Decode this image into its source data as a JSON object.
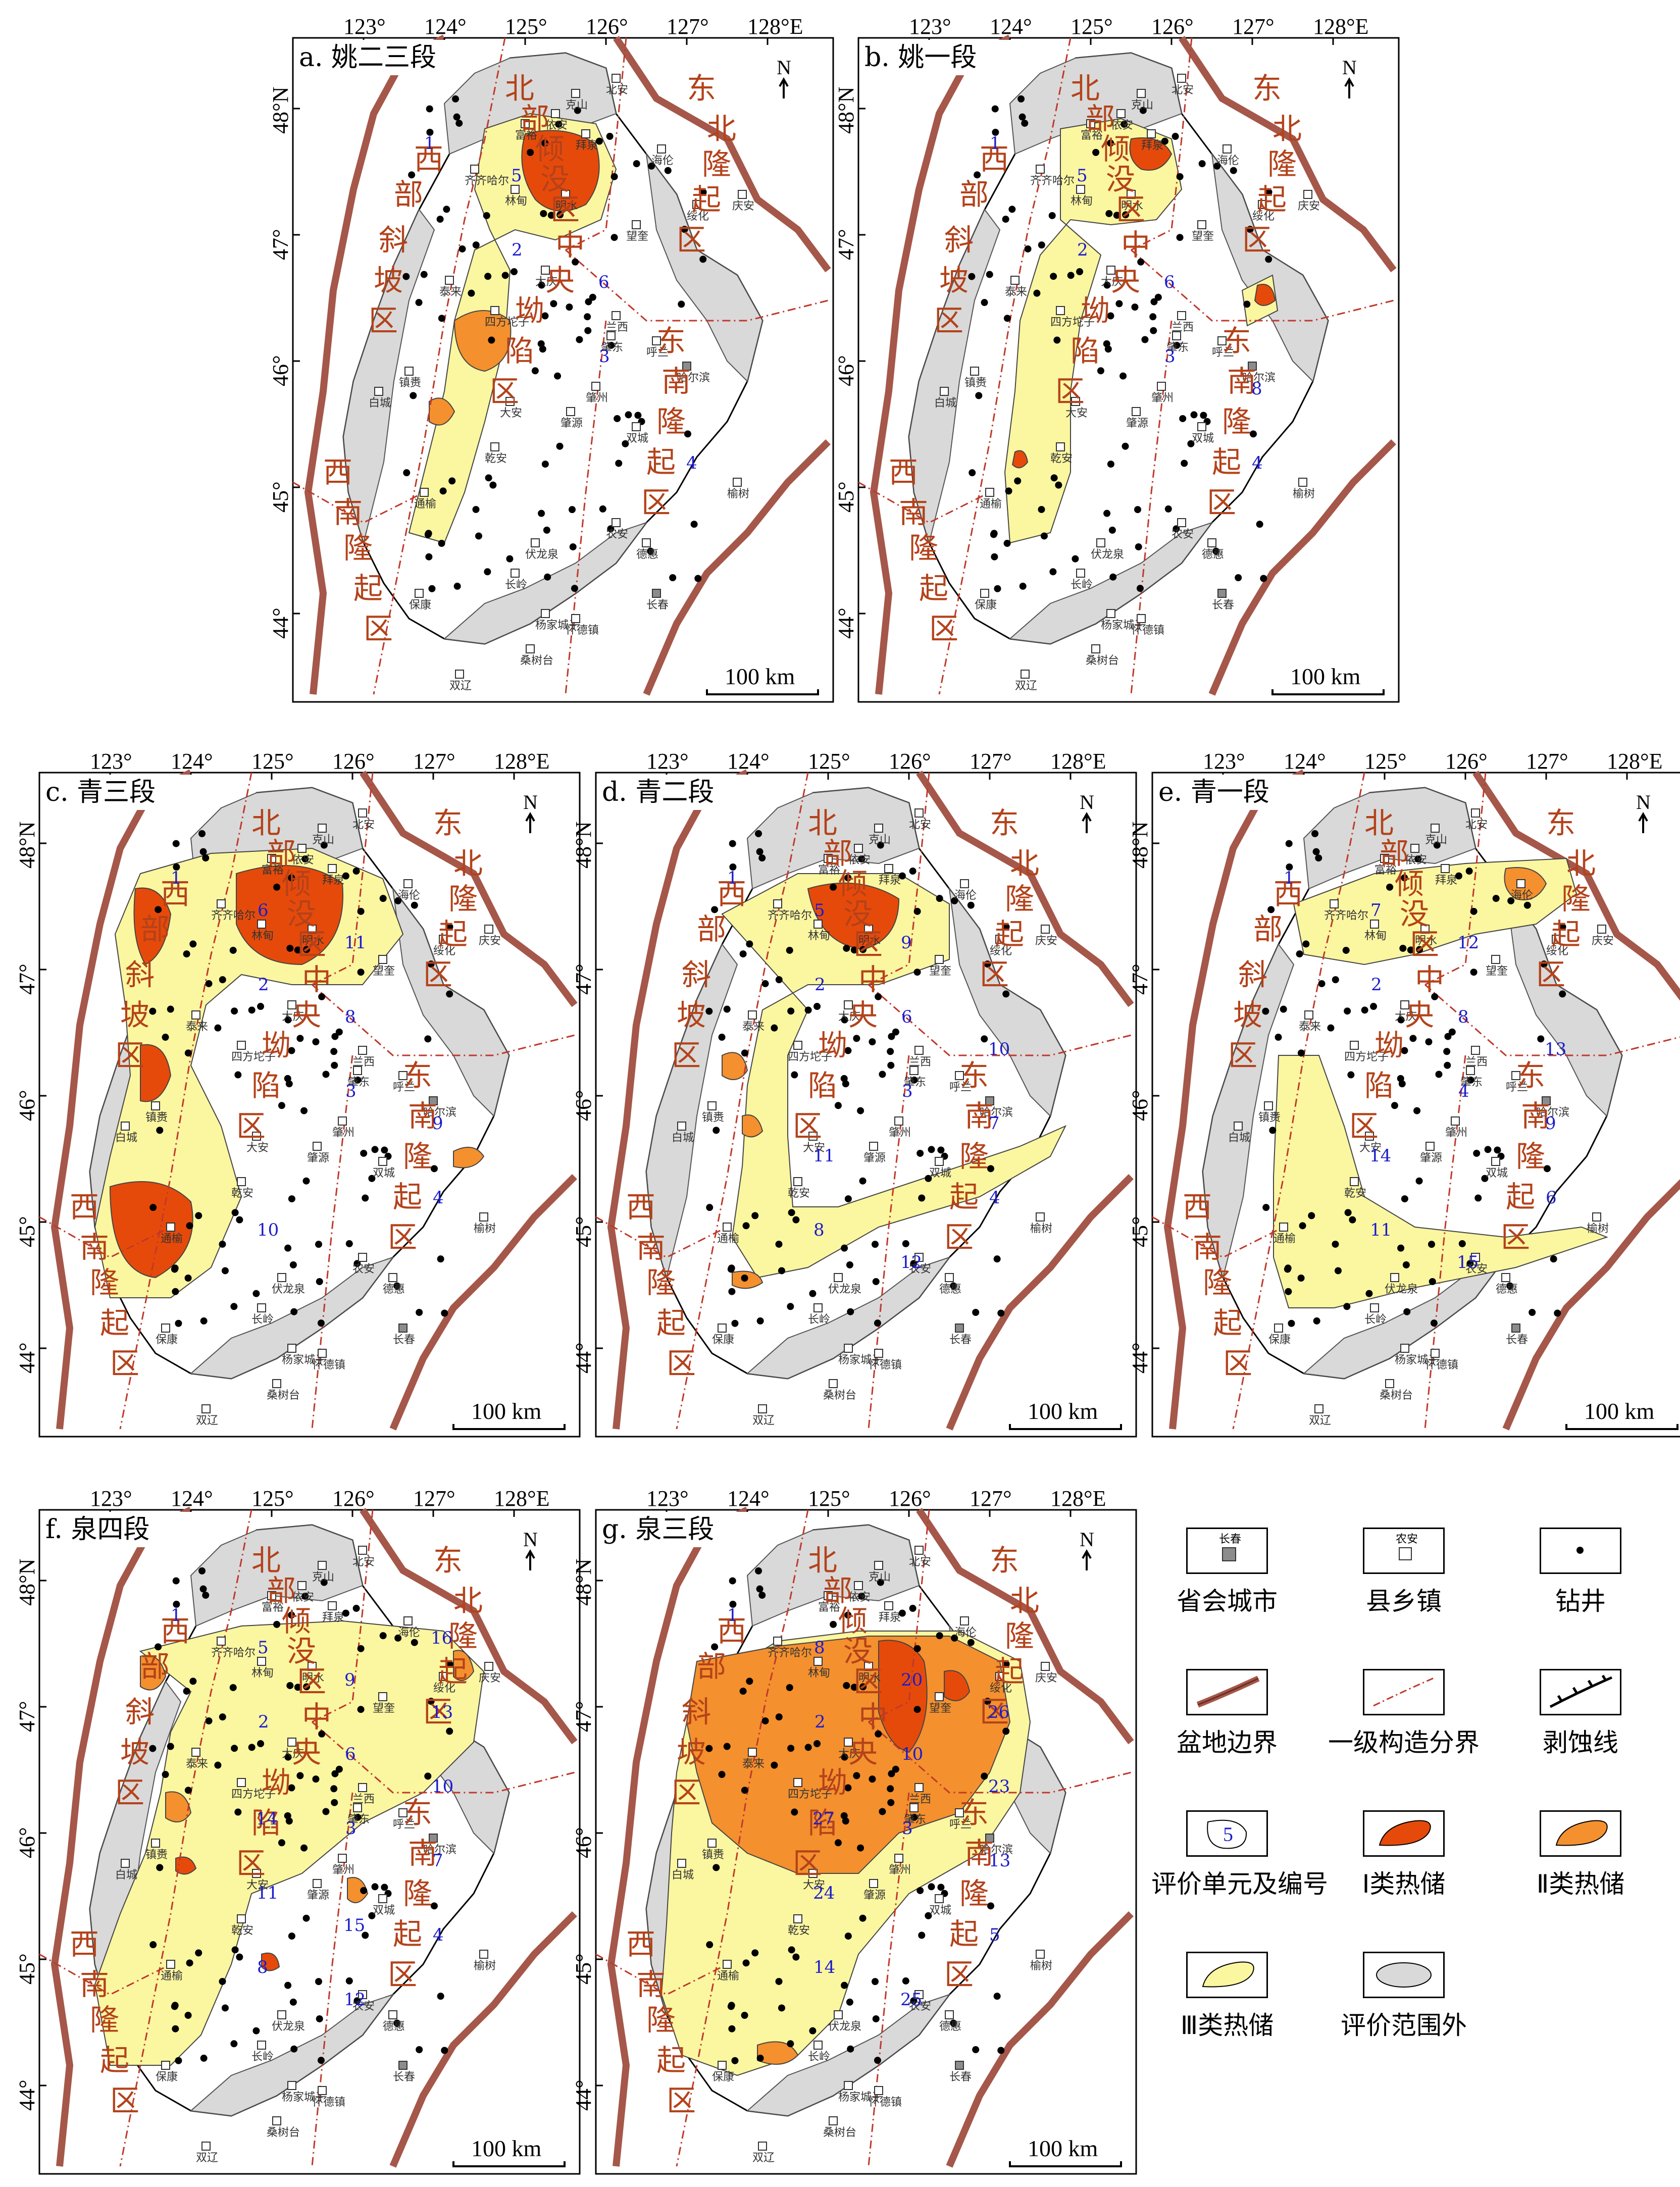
{
  "lon_labels": [
    "123°",
    "124°",
    "125°",
    "126°",
    "127°",
    "128°E"
  ],
  "lat_labels": [
    "48°N",
    "47°",
    "46°",
    "45°",
    "44°"
  ],
  "scale_label": "100 km",
  "north_label": "N",
  "panels": [
    {
      "id": "a",
      "title": "a. 姚二三段",
      "units": [
        "1",
        "2",
        "3",
        "4",
        "5",
        "6"
      ]
    },
    {
      "id": "b",
      "title": "b. 姚一段",
      "units": [
        "1",
        "2",
        "3",
        "4",
        "5",
        "6",
        "8"
      ]
    },
    {
      "id": "c",
      "title": "c. 青三段",
      "units": [
        "1",
        "2",
        "3",
        "4",
        "6",
        "8",
        "9",
        "10",
        "11"
      ]
    },
    {
      "id": "d",
      "title": "d. 青二段",
      "units": [
        "1",
        "2",
        "3",
        "4",
        "5",
        "6",
        "7",
        "8",
        "9",
        "10",
        "11",
        "12"
      ]
    },
    {
      "id": "e",
      "title": "e. 青一段",
      "units": [
        "1",
        "2",
        "4",
        "6",
        "7",
        "8",
        "9",
        "11",
        "12",
        "13",
        "14",
        "15"
      ]
    },
    {
      "id": "f",
      "title": "f. 泉四段",
      "units": [
        "1",
        "2",
        "3",
        "4",
        "5",
        "6",
        "7",
        "8",
        "9",
        "10",
        "11",
        "12",
        "13",
        "14",
        "15",
        "16"
      ]
    },
    {
      "id": "g",
      "title": "g. 泉三段",
      "units": [
        "1",
        "2",
        "3",
        "5",
        "8",
        "10",
        "13",
        "14",
        "20",
        "23",
        "24",
        "25",
        "26",
        "27"
      ]
    }
  ],
  "regions": [
    "北部倾没区",
    "东北隆起区",
    "西部斜坡区",
    "中央坳陷区",
    "东南隆起区",
    "西南隆起区"
  ],
  "region_chars": {
    "north": [
      "北",
      "部",
      "倾",
      "没",
      "区"
    ],
    "northeast": [
      "东",
      "北",
      "隆",
      "起",
      "区"
    ],
    "west": [
      "西",
      "部",
      "斜",
      "坡",
      "区"
    ],
    "central": [
      "中",
      "央",
      "坳",
      "陷",
      "区"
    ],
    "southeast": [
      "东",
      "南",
      "隆",
      "起",
      "区"
    ],
    "southwest": [
      "西",
      "南",
      "隆",
      "起",
      "区"
    ]
  },
  "towns": [
    "北安",
    "克山",
    "依安",
    "拜泉",
    "富裕",
    "海伦",
    "齐齐哈尔",
    "林甸",
    "明水",
    "绥化",
    "庆安",
    "望奎",
    "大庆",
    "泰来",
    "四方坨子",
    "兰西",
    "肇东",
    "呼兰",
    "哈尔滨",
    "肇州",
    "镇赉",
    "白城",
    "大安",
    "肇源",
    "双城",
    "乾安",
    "通榆",
    "榆树",
    "农安",
    "德惠",
    "伏龙泉",
    "长岭",
    "长春",
    "保康",
    "杨家城子",
    "怀德镇",
    "桑树台",
    "双辽"
  ],
  "legend": {
    "items": [
      {
        "label": "省会城市",
        "sample": "长春"
      },
      {
        "label": "县乡镇",
        "sample": "农安"
      },
      {
        "label": "钻井",
        "sample": ""
      },
      {
        "label": "盆地边界",
        "sample": ""
      },
      {
        "label": "一级构造分界",
        "sample": ""
      },
      {
        "label": "剥蚀线",
        "sample": ""
      },
      {
        "label": "评价单元及编号",
        "sample": "5"
      },
      {
        "label": "Ⅰ类热储",
        "sample": ""
      },
      {
        "label": "Ⅱ类热储",
        "sample": ""
      },
      {
        "label": "Ⅲ类热储",
        "sample": ""
      },
      {
        "label": "评价范围外",
        "sample": ""
      }
    ]
  },
  "colors": {
    "class1": "#e64a0a",
    "class2": "#f4902e",
    "class3": "#fbf6a0",
    "outside": "#d9d9d9",
    "boundary": "#a5574a",
    "structure": "#c0392b",
    "unit_number": "#1c1ccc",
    "region_text": "#b4421a"
  }
}
